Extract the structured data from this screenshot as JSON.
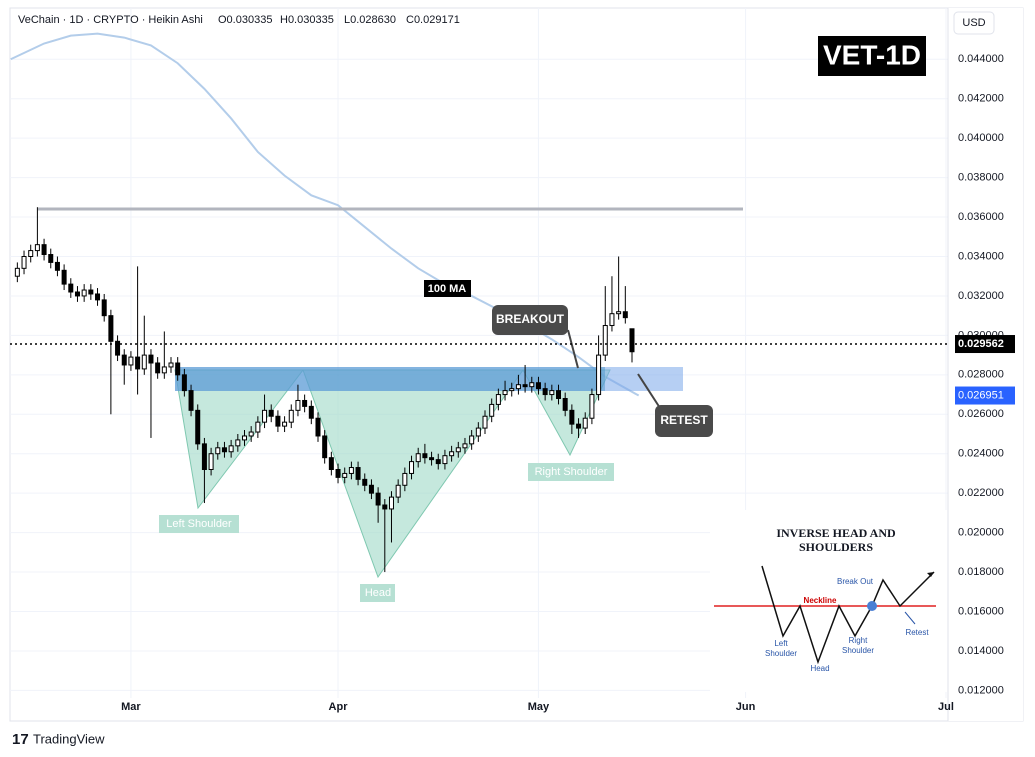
{
  "header": {
    "symbol": "VeChain · 1D · CRYPTO · Heikin Ashi",
    "open": "O0.030335",
    "high": "H0.030335",
    "low": "L0.028630",
    "close": "C0.029171"
  },
  "currency": "USD",
  "badge": "VET-1D",
  "annotations": {
    "ma_label": "100 MA",
    "breakout": "BREAKOUT",
    "retest": "RETEST",
    "left_shoulder": "Left Shoulder",
    "head": "Head",
    "right_shoulder": "Right Shoulder"
  },
  "inset": {
    "title": [
      "INVERSE HEAD AND",
      "SHOULDERS"
    ],
    "break_out": "Break Out",
    "neckline": "Neckline",
    "left_shoulder": [
      "Left",
      "Shoulder"
    ],
    "head": "Head",
    "right_shoulder": [
      "Right",
      "Shoulder"
    ],
    "retest": "Retest"
  },
  "branding": "TradingView",
  "chart_data": {
    "type": "candlestick",
    "up_color": "#ffffff",
    "down_color": "#000000",
    "outline_color": "#000000",
    "ylim": [
      0.0106,
      0.0466
    ],
    "yticks": [
      {
        "value": 0.012,
        "label": "0.012000"
      },
      {
        "value": 0.014,
        "label": "0.014000"
      },
      {
        "value": 0.016,
        "label": "0.016000"
      },
      {
        "value": 0.018,
        "label": "0.018000"
      },
      {
        "value": 0.02,
        "label": "0.020000"
      },
      {
        "value": 0.022,
        "label": "0.022000"
      },
      {
        "value": 0.024,
        "label": "0.024000"
      },
      {
        "value": 0.026,
        "label": "0.026000"
      },
      {
        "value": 0.028,
        "label": "0.028000"
      },
      {
        "value": 0.03,
        "label": "0.030000"
      },
      {
        "value": 0.032,
        "label": "0.032000"
      },
      {
        "value": 0.034,
        "label": "0.034000"
      },
      {
        "value": 0.036,
        "label": "0.036000"
      },
      {
        "value": 0.038,
        "label": "0.038000"
      },
      {
        "value": 0.04,
        "label": "0.040000"
      },
      {
        "value": 0.042,
        "label": "0.042000"
      },
      {
        "value": 0.044,
        "label": "0.044000"
      }
    ],
    "xlim": [
      -1.1,
      139.3
    ],
    "xticks": [
      {
        "value": 17,
        "label": "Mar"
      },
      {
        "value": 48,
        "label": "Apr"
      },
      {
        "value": 78,
        "label": "May"
      },
      {
        "value": 109,
        "label": "Jun"
      },
      {
        "value": 139,
        "label": "Jul"
      }
    ],
    "grid": true,
    "open": [
      0.033,
      0.0334,
      0.034,
      0.0343,
      0.0346,
      0.0341,
      0.0337,
      0.0333,
      0.0326,
      0.0322,
      0.032,
      0.0323,
      0.0321,
      0.0318,
      0.031,
      0.0297,
      0.029,
      0.0285,
      0.0289,
      0.0283,
      0.029,
      0.0286,
      0.0281,
      0.0284,
      0.0286,
      0.028,
      0.0272,
      0.0262,
      0.0245,
      0.0232,
      0.024,
      0.0243,
      0.0241,
      0.0244,
      0.0247,
      0.0249,
      0.0251,
      0.0256,
      0.0262,
      0.0259,
      0.0254,
      0.0256,
      0.0262,
      0.0267,
      0.0264,
      0.0258,
      0.0249,
      0.0238,
      0.0232,
      0.0228,
      0.023,
      0.0233,
      0.0227,
      0.0224,
      0.022,
      0.0214,
      0.0212,
      0.0218,
      0.0224,
      0.023,
      0.0236,
      0.024,
      0.0238,
      0.0237,
      0.0235,
      0.0239,
      0.0241,
      0.0243,
      0.0245,
      0.0249,
      0.0253,
      0.0259,
      0.0265,
      0.027,
      0.0272,
      0.0273,
      0.0275,
      0.0274,
      0.0276,
      0.0273,
      0.027,
      0.0272,
      0.0268,
      0.0262,
      0.0255,
      0.0253,
      0.0258,
      0.027,
      0.029,
      0.0305,
      0.0311,
      0.0312,
      0.030335
    ],
    "high": [
      0.0337,
      0.0343,
      0.0346,
      0.0365,
      0.0349,
      0.0344,
      0.034,
      0.0336,
      0.0329,
      0.0325,
      0.0326,
      0.0326,
      0.0324,
      0.0321,
      0.0313,
      0.03,
      0.0293,
      0.0292,
      0.0335,
      0.031,
      0.0293,
      0.0289,
      0.0302,
      0.0289,
      0.0289,
      0.0283,
      0.0275,
      0.0265,
      0.0248,
      0.0243,
      0.0246,
      0.0246,
      0.0247,
      0.025,
      0.0252,
      0.0254,
      0.0259,
      0.027,
      0.0265,
      0.0262,
      0.0259,
      0.0265,
      0.0275,
      0.027,
      0.0267,
      0.0261,
      0.0252,
      0.0241,
      0.0235,
      0.0233,
      0.0236,
      0.0236,
      0.023,
      0.0227,
      0.0223,
      0.0217,
      0.0221,
      0.0227,
      0.0233,
      0.0239,
      0.0243,
      0.0245,
      0.0241,
      0.024,
      0.0242,
      0.0244,
      0.0246,
      0.0248,
      0.0252,
      0.0256,
      0.0262,
      0.0268,
      0.0273,
      0.0277,
      0.0276,
      0.028,
      0.0285,
      0.0279,
      0.0279,
      0.0276,
      0.0275,
      0.0275,
      0.0271,
      0.0265,
      0.0258,
      0.0261,
      0.0273,
      0.03,
      0.0325,
      0.033,
      0.034,
      0.0325,
      0.030335
    ],
    "low": [
      0.0327,
      0.0331,
      0.0337,
      0.034,
      0.0338,
      0.0334,
      0.033,
      0.0323,
      0.0319,
      0.0317,
      0.0317,
      0.0318,
      0.0315,
      0.0307,
      0.026,
      0.0287,
      0.0275,
      0.0282,
      0.027,
      0.028,
      0.0248,
      0.0278,
      0.0278,
      0.0281,
      0.0277,
      0.0269,
      0.0259,
      0.0242,
      0.0215,
      0.0229,
      0.0237,
      0.0238,
      0.0238,
      0.0241,
      0.0244,
      0.0246,
      0.0248,
      0.0253,
      0.0256,
      0.0251,
      0.0251,
      0.0253,
      0.0259,
      0.0261,
      0.0255,
      0.0246,
      0.0235,
      0.0229,
      0.0225,
      0.0225,
      0.0227,
      0.0224,
      0.0221,
      0.0217,
      0.0205,
      0.018,
      0.0195,
      0.0215,
      0.0221,
      0.0227,
      0.0233,
      0.0235,
      0.0234,
      0.0232,
      0.0232,
      0.0236,
      0.0238,
      0.024,
      0.0242,
      0.0246,
      0.025,
      0.0256,
      0.0262,
      0.0267,
      0.0269,
      0.027,
      0.0271,
      0.0271,
      0.027,
      0.0267,
      0.0267,
      0.0265,
      0.0259,
      0.025,
      0.0248,
      0.025,
      0.0255,
      0.0267,
      0.0287,
      0.0302,
      0.0308,
      0.0306,
      0.02863
    ],
    "close": [
      0.0334,
      0.034,
      0.0343,
      0.0346,
      0.0341,
      0.0337,
      0.0333,
      0.0326,
      0.0322,
      0.032,
      0.0323,
      0.0321,
      0.0318,
      0.031,
      0.0297,
      0.029,
      0.0285,
      0.0289,
      0.0283,
      0.029,
      0.0286,
      0.0281,
      0.0284,
      0.0286,
      0.028,
      0.0272,
      0.0262,
      0.0245,
      0.0232,
      0.024,
      0.0243,
      0.0241,
      0.0244,
      0.0247,
      0.0249,
      0.0251,
      0.0256,
      0.0262,
      0.0259,
      0.0254,
      0.0256,
      0.0262,
      0.0267,
      0.0264,
      0.0258,
      0.0249,
      0.0238,
      0.0232,
      0.0228,
      0.023,
      0.0233,
      0.0227,
      0.0224,
      0.022,
      0.0214,
      0.0212,
      0.0218,
      0.0224,
      0.023,
      0.0236,
      0.024,
      0.0238,
      0.0237,
      0.0235,
      0.0239,
      0.0241,
      0.0243,
      0.0245,
      0.0249,
      0.0253,
      0.0259,
      0.0265,
      0.027,
      0.0272,
      0.0273,
      0.0275,
      0.0274,
      0.0276,
      0.0273,
      0.027,
      0.0272,
      0.0268,
      0.0262,
      0.0255,
      0.0253,
      0.0258,
      0.027,
      0.029,
      0.0305,
      0.0311,
      0.0312,
      0.0309,
      0.029171
    ],
    "ma": {
      "color": "#b3cdea",
      "x": [
        -1,
        4,
        8,
        12,
        16,
        20,
        24,
        28,
        32,
        36,
        40,
        44,
        48,
        52,
        56,
        60,
        64,
        68,
        72,
        76,
        80,
        84,
        88,
        93
      ],
      "values": [
        0.044,
        0.0448,
        0.0452,
        0.0453,
        0.0451,
        0.0447,
        0.0438,
        0.0425,
        0.041,
        0.0393,
        0.0381,
        0.0371,
        0.0366,
        0.0355,
        0.0344,
        0.0334,
        0.0326,
        0.032,
        0.0313,
        0.0306,
        0.0298,
        0.0289,
        0.0279,
        0.02695
      ]
    },
    "last_price": 0.029562,
    "ma_value": 0.026951
  }
}
